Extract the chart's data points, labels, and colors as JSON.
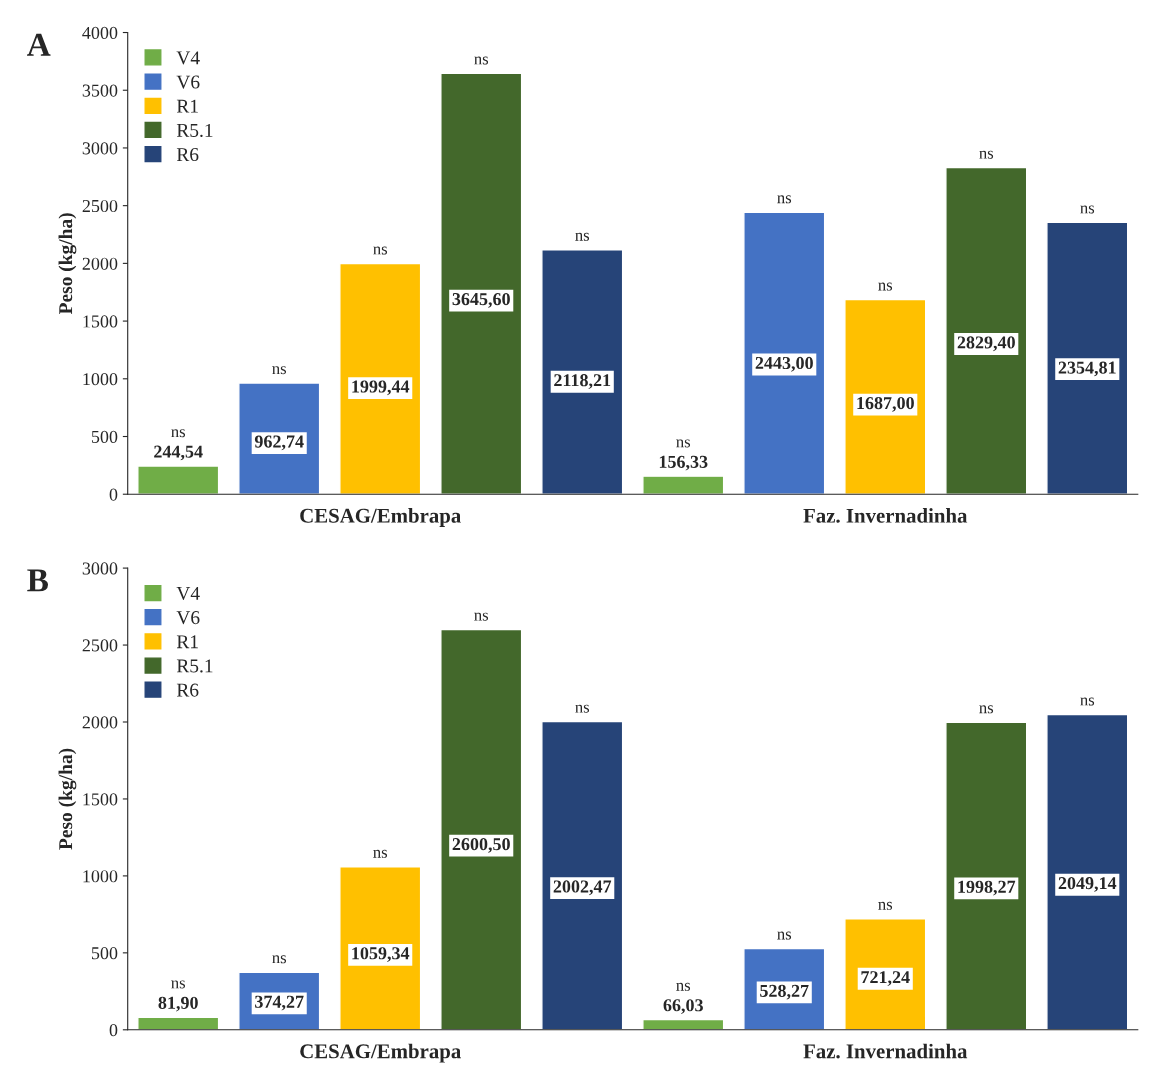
{
  "chart_data": [
    {
      "type": "bar",
      "title": "A",
      "ylabel": "Peso (kg/ha)",
      "categories": [
        "CESAG/Embrapa",
        "Faz. Invernadinha"
      ],
      "series": [
        {
          "name": "V4",
          "color": "#70ad47",
          "values": [
            244.54,
            156.33
          ],
          "value_labels": [
            "244,54",
            "156,33"
          ]
        },
        {
          "name": "V6",
          "color": "#4472c4",
          "values": [
            962.74,
            2443.0
          ],
          "value_labels": [
            "962,74",
            "2443,00"
          ]
        },
        {
          "name": "R1",
          "color": "#ffc000",
          "values": [
            1999.44,
            1687.0
          ],
          "value_labels": [
            "1999,44",
            "1687,00"
          ]
        },
        {
          "name": "R5.1",
          "color": "#43682b",
          "values": [
            3645.6,
            2829.4
          ],
          "value_labels": [
            "3645,60",
            "2829,40"
          ]
        },
        {
          "name": "R6",
          "color": "#264478",
          "values": [
            2118.21,
            2354.81
          ],
          "value_labels": [
            "2118,21",
            "2354,81"
          ]
        }
      ],
      "ylim": [
        0,
        4000
      ],
      "yticks": [
        0,
        500,
        1000,
        1500,
        2000,
        2500,
        3000,
        3500,
        4000
      ],
      "grid": false,
      "legend": "top left",
      "annotations": [
        "ns",
        "ns",
        "ns",
        "ns",
        "ns",
        "ns",
        "ns",
        "ns",
        "ns",
        "ns"
      ]
    },
    {
      "type": "bar",
      "title": "B",
      "ylabel": "Peso (kg/ha)",
      "categories": [
        "CESAG/Embrapa",
        "Faz. Invernadinha"
      ],
      "series": [
        {
          "name": "V4",
          "color": "#70ad47",
          "values": [
            81.9,
            66.03
          ],
          "value_labels": [
            "81,90",
            "66,03"
          ]
        },
        {
          "name": "V6",
          "color": "#4472c4",
          "values": [
            374.27,
            528.27
          ],
          "value_labels": [
            "374,27",
            "528,27"
          ]
        },
        {
          "name": "R1",
          "color": "#ffc000",
          "values": [
            1059.34,
            721.24
          ],
          "value_labels": [
            "1059,34",
            "721,24"
          ]
        },
        {
          "name": "R5.1",
          "color": "#43682b",
          "values": [
            2600.5,
            1998.27
          ],
          "value_labels": [
            "2600,50",
            "1998,27"
          ]
        },
        {
          "name": "R6",
          "color": "#264478",
          "values": [
            2002.47,
            2049.14
          ],
          "value_labels": [
            "2002,47",
            "2049,14"
          ]
        }
      ],
      "ylim": [
        0,
        3000
      ],
      "yticks": [
        0,
        500,
        1000,
        1500,
        2000,
        2500,
        3000
      ],
      "grid": false,
      "legend": "top left",
      "annotations": [
        "ns",
        "ns",
        "ns",
        "ns",
        "ns",
        "ns",
        "ns",
        "ns",
        "ns",
        "ns"
      ]
    }
  ]
}
